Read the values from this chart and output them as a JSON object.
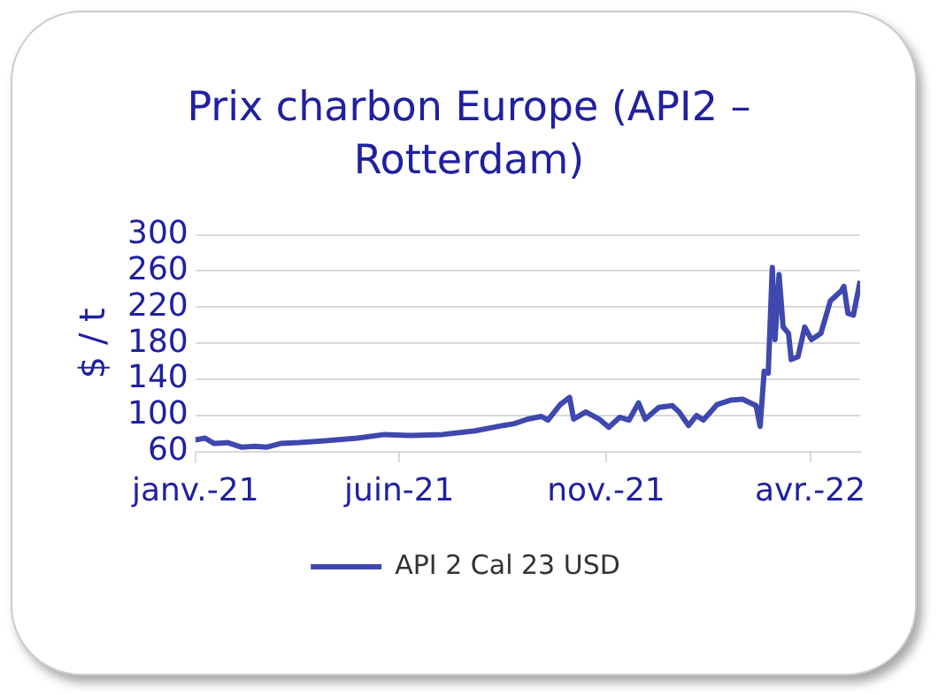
{
  "chart_data": {
    "type": "line",
    "title": "Prix charbon Europe (API2 – Rotterdam)",
    "ylabel": "$ / t",
    "x": [
      "2021-01-01",
      "2021-01-08",
      "2021-01-15",
      "2021-01-25",
      "2021-02-04",
      "2021-02-14",
      "2021-02-23",
      "2021-03-05",
      "2021-03-19",
      "2021-04-07",
      "2021-05-01",
      "2021-05-21",
      "2021-06-09",
      "2021-07-03",
      "2021-07-27",
      "2021-08-17",
      "2021-08-25",
      "2021-09-04",
      "2021-09-14",
      "2021-09-19",
      "2021-09-28",
      "2021-10-05",
      "2021-10-08",
      "2021-10-17",
      "2021-10-27",
      "2021-11-03",
      "2021-11-11",
      "2021-11-18",
      "2021-11-25",
      "2021-11-30",
      "2021-12-10",
      "2021-12-20",
      "2021-12-25",
      "2022-01-01",
      "2022-01-07",
      "2022-01-12",
      "2022-01-22",
      "2022-02-01",
      "2022-02-10",
      "2022-02-20",
      "2022-02-23",
      "2022-02-26",
      "2022-03-01",
      "2022-03-04",
      "2022-03-06",
      "2022-03-09",
      "2022-03-12",
      "2022-03-16",
      "2022-03-18",
      "2022-03-23",
      "2022-03-28",
      "2022-04-02",
      "2022-04-09",
      "2022-04-16",
      "2022-04-24",
      "2022-04-26",
      "2022-04-29",
      "2022-05-03",
      "2022-05-08"
    ],
    "series": [
      {
        "name": "API 2 Cal 23 USD",
        "color": "#3f48ae",
        "values": [
          73,
          75,
          69,
          70,
          65,
          66,
          65,
          69,
          70,
          72,
          75,
          79,
          78,
          79,
          83,
          89,
          91,
          96,
          99,
          95,
          112,
          120,
          96,
          104,
          96,
          87,
          98,
          95,
          114,
          96,
          109,
          111,
          104,
          89,
          100,
          95,
          112,
          117,
          118,
          111,
          88,
          149,
          147,
          264,
          184,
          256,
          198,
          191,
          162,
          165,
          198,
          184,
          191,
          227,
          238,
          243,
          213,
          211,
          249
        ]
      }
    ],
    "xlim": [
      "2021-01-01",
      "2022-05-08"
    ],
    "xticks": [
      {
        "value": "2021-01-01",
        "label": "janv.-21"
      },
      {
        "value": "2021-06-01",
        "label": "juin-21"
      },
      {
        "value": "2021-11-01",
        "label": "nov.-21"
      },
      {
        "value": "2022-04-01",
        "label": "avr.-22"
      }
    ],
    "ylim": [
      60,
      300
    ],
    "yticks": [
      60,
      100,
      140,
      180,
      220,
      260,
      300
    ],
    "grid": "y",
    "legend": "bottom",
    "marker": "none",
    "line_style": "solid"
  }
}
